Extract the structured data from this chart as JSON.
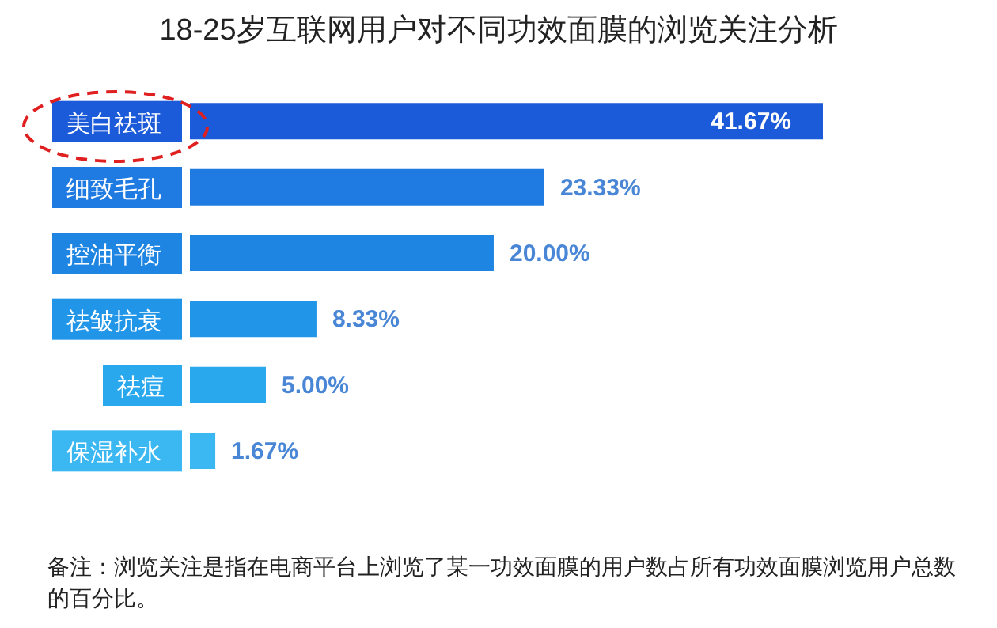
{
  "chart_data": {
    "type": "bar",
    "orientation": "horizontal",
    "title": "18-25岁互联网用户对不同功效面膜的浏览关注分析",
    "categories": [
      "美白祛斑",
      "细致毛孔",
      "控油平衡",
      "祛皱抗衰",
      "祛痘",
      "保湿补水"
    ],
    "values": [
      41.67,
      23.33,
      20.0,
      8.33,
      5.0,
      1.67
    ],
    "value_labels": [
      "41.67%",
      "23.33%",
      "20.00%",
      "8.33%",
      "5.00%",
      "1.67%"
    ],
    "colors": [
      "#1b5ad8",
      "#1f7ae2",
      "#1f85e3",
      "#2196e8",
      "#2aa8ee",
      "#3bb8f2"
    ],
    "annotations": [
      "备注：浏览关注是指在电商平台上浏览了某一功效面膜的用户数占所有功效面膜浏览用户总数的百分比。"
    ]
  }
}
